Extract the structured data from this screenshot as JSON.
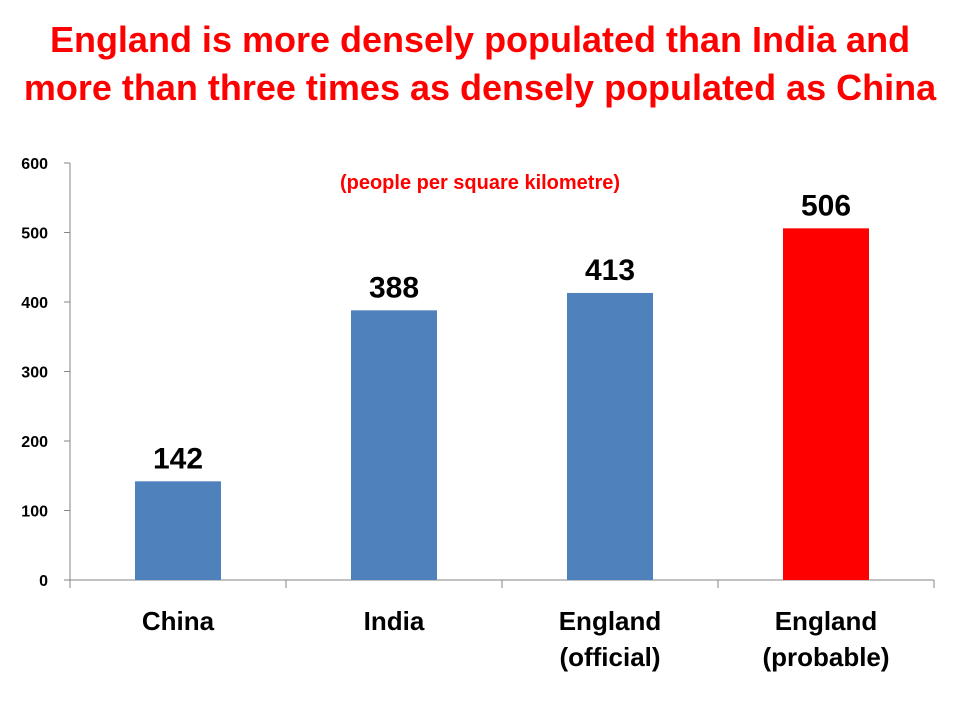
{
  "chart_data": {
    "type": "bar",
    "title": "England is more densely populated than India and more than three times as densely populated as China",
    "subtitle": "(people per square kilometre)",
    "categories": [
      [
        "China"
      ],
      [
        "India"
      ],
      [
        "England",
        "(official)"
      ],
      [
        "England",
        "(probable)"
      ]
    ],
    "values": [
      142,
      388,
      413,
      506
    ],
    "bar_colors": [
      "#4f81bd",
      "#4f81bd",
      "#4f81bd",
      "#ff0000"
    ],
    "ylim": [
      0,
      600
    ],
    "yticks": [
      0,
      100,
      200,
      300,
      400,
      500,
      600
    ],
    "grid": false,
    "legend": "none"
  }
}
